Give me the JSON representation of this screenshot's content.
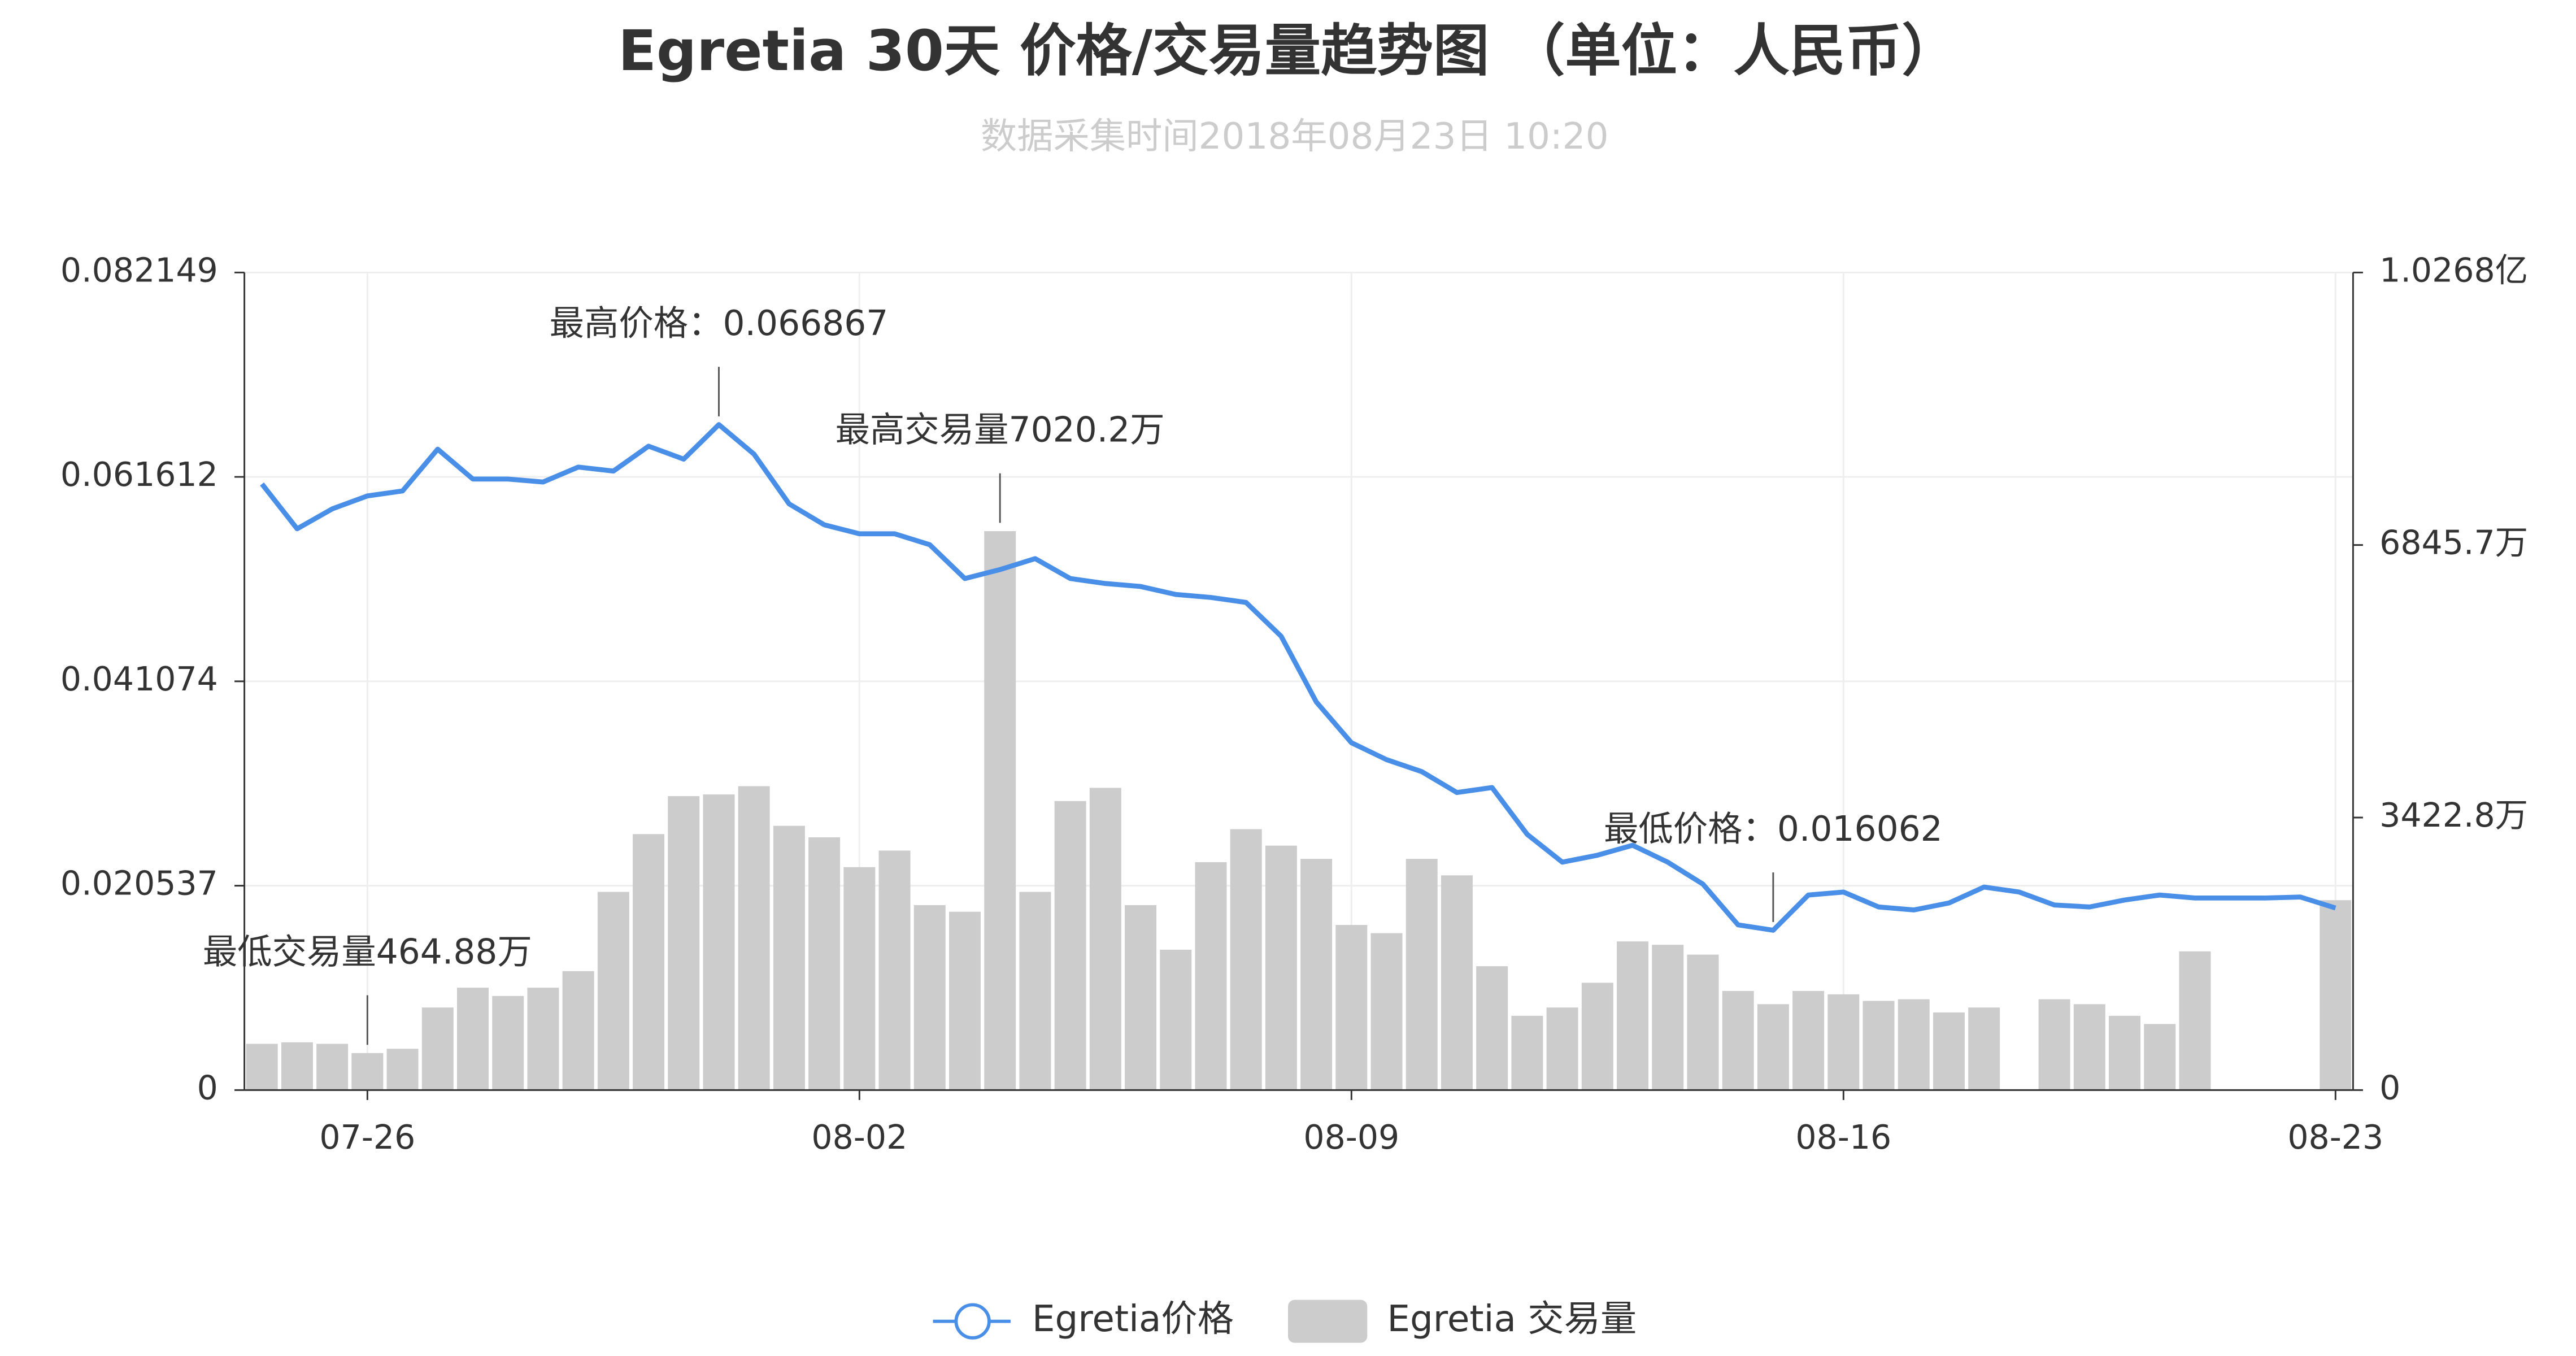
{
  "chart_data": {
    "type": "bar-line",
    "title": "Egretia 30天 价格/交易量趋势图 （单位：人民币）",
    "subtitle": "数据采集时间2018年08月23日 10:20",
    "categories": [
      null,
      null,
      null,
      "07-26",
      null,
      null,
      null,
      null,
      null,
      null,
      null,
      null,
      null,
      null,
      null,
      null,
      null,
      "08-02",
      null,
      null,
      null,
      null,
      null,
      null,
      null,
      null,
      null,
      null,
      null,
      null,
      null,
      "08-09",
      null,
      null,
      null,
      null,
      null,
      null,
      null,
      null,
      null,
      null,
      null,
      null,
      null,
      "08-16",
      null,
      null,
      null,
      null,
      null,
      null,
      null,
      null,
      null,
      null,
      null,
      null,
      null,
      "08-23"
    ],
    "series": [
      {
        "name": "Egretia价格",
        "type": "line",
        "color": "#4a8fe7",
        "axis": "y",
        "values": [
          0.0609,
          0.0564,
          0.0584,
          0.0597,
          0.0602,
          0.0644,
          0.0614,
          0.0614,
          0.0611,
          0.0626,
          0.0622,
          0.0647,
          0.0634,
          0.066867,
          0.0639,
          0.0589,
          0.0568,
          0.0559,
          0.0559,
          0.0548,
          0.0514,
          0.0523,
          0.0534,
          0.0514,
          0.0509,
          0.0506,
          0.0498,
          0.0495,
          0.049,
          0.0456,
          0.039,
          0.0349,
          0.0332,
          0.032,
          0.0299,
          0.0304,
          0.0257,
          0.0229,
          0.0236,
          0.0246,
          0.0229,
          0.0207,
          0.0166,
          0.016062,
          0.0196,
          0.0199,
          0.0184,
          0.0181,
          0.0188,
          0.0204,
          0.0199,
          0.0186,
          0.0184,
          0.0191,
          0.0196,
          0.0193,
          0.0193,
          0.0193,
          0.0194,
          0.0183
        ]
      },
      {
        "name": "Egretia 交易量",
        "type": "bar",
        "color": "#cccccc",
        "axis": "y2",
        "values": [
          581,
          600,
          581,
          464.88,
          519,
          1037,
          1286,
          1182,
          1286,
          1494,
          2489,
          3215,
          3692,
          3713,
          3817,
          3319,
          3174,
          2800,
          3008,
          2323,
          2240,
          7020.2,
          2489,
          3630,
          3796,
          2323,
          1763,
          2863,
          3277,
          3070,
          2904,
          2074,
          1971,
          2904,
          2697,
          1556,
          933,
          1037,
          1348,
          1867,
          1825,
          1701,
          1245,
          1079,
          1245,
          1203,
          1120,
          1141,
          975,
          1037,
          null,
          1141,
          1079,
          933,
          830,
          1742,
          null,
          null,
          null,
          2385
        ]
      }
    ],
    "annotations": {
      "max_price": "最高价格：0.066867",
      "max_volume": "最高交易量7020.2万",
      "min_price": "最低价格：0.016062",
      "min_volume": "最低交易量464.88万"
    },
    "ylim": [
      0,
      0.082149
    ],
    "yticks": [
      0,
      0.020537,
      0.041074,
      0.061612,
      0.082149
    ],
    "y2lim": [
      0,
      10268
    ],
    "y2ticks": [
      0,
      {
        "value": 3422.8,
        "label": "3422.8万"
      },
      {
        "value": 6845.7,
        "label": "6845.7万"
      },
      {
        "value": 10268,
        "label": "1.0268亿"
      }
    ],
    "grid": true,
    "legend": "bottom"
  }
}
